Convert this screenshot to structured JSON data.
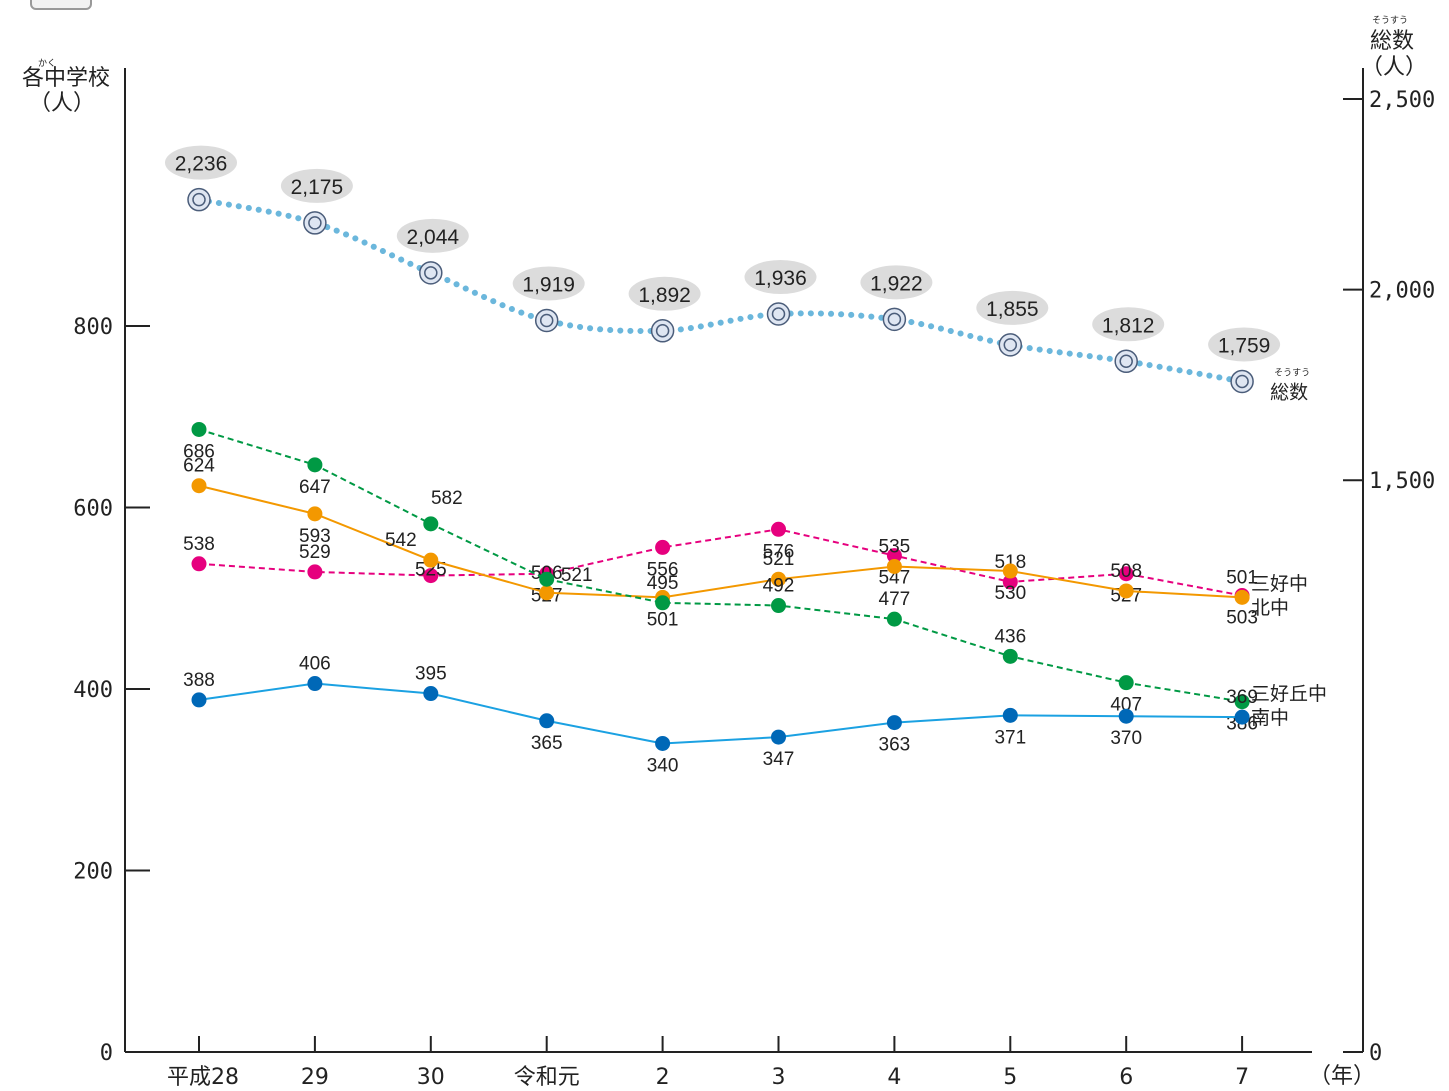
{
  "chart_data": {
    "type": "line",
    "categories": [
      "平成28",
      "29",
      "30",
      "令和元",
      "2",
      "3",
      "4",
      "5",
      "6",
      "7"
    ],
    "x_unit": "（年）",
    "y_left": {
      "ruby": "かく",
      "title": "各中学校",
      "unit": "（人）",
      "range": [
        0,
        1050
      ],
      "ticks": [
        0,
        200,
        400,
        600,
        800
      ],
      "tick_labels": [
        "0",
        "200",
        "400",
        "600",
        "800"
      ]
    },
    "y_right": {
      "ruby": "そうすう",
      "title": "総数",
      "unit": "（人）",
      "range": [
        0,
        2500
      ],
      "ticks": [
        0,
        1500,
        2000,
        2500
      ],
      "tick_labels": [
        "0",
        "1,500",
        "2,000",
        "2,500"
      ]
    },
    "total": {
      "name": "総数",
      "name_ruby": "そうすう",
      "color": "#6bb7dc",
      "values": [
        2236,
        2175,
        2044,
        1919,
        1892,
        1936,
        1922,
        1855,
        1812,
        1759
      ],
      "labels": [
        "2,236",
        "2,175",
        "2,044",
        "1,919",
        "1,892",
        "1,936",
        "1,922",
        "1,855",
        "1,812",
        "1,759"
      ]
    },
    "series": [
      {
        "name": "三好中",
        "color": "#e6007e",
        "style": "dashed",
        "values": [
          538,
          529,
          525,
          527,
          556,
          576,
          547,
          518,
          527,
          503
        ],
        "labels": [
          "538",
          "529",
          "525",
          "527",
          "556",
          "576",
          "547",
          "518",
          "527",
          "503"
        ]
      },
      {
        "name": "北中",
        "color": "#f39800",
        "style": "solid",
        "values": [
          624,
          593,
          542,
          506,
          501,
          521,
          535,
          530,
          508,
          501
        ],
        "labels": [
          "624",
          "593",
          "542",
          "506",
          "501",
          "521",
          "535",
          "530",
          "508",
          "501"
        ]
      },
      {
        "name": "三好丘中",
        "color": "#009944",
        "style": "dashed",
        "values": [
          686,
          647,
          582,
          521,
          495,
          492,
          477,
          436,
          407,
          386
        ],
        "labels": [
          "686",
          "647",
          "582",
          "521",
          "495",
          "492",
          "477",
          "436",
          "407",
          "386"
        ]
      },
      {
        "name": "南中",
        "color": "#1ba1e2",
        "marker_color": "#0068b7",
        "style": "solid",
        "values": [
          388,
          406,
          395,
          365,
          340,
          347,
          363,
          371,
          370,
          369
        ],
        "labels": [
          "388",
          "406",
          "395",
          "365",
          "340",
          "347",
          "363",
          "371",
          "370",
          "369"
        ]
      }
    ]
  }
}
